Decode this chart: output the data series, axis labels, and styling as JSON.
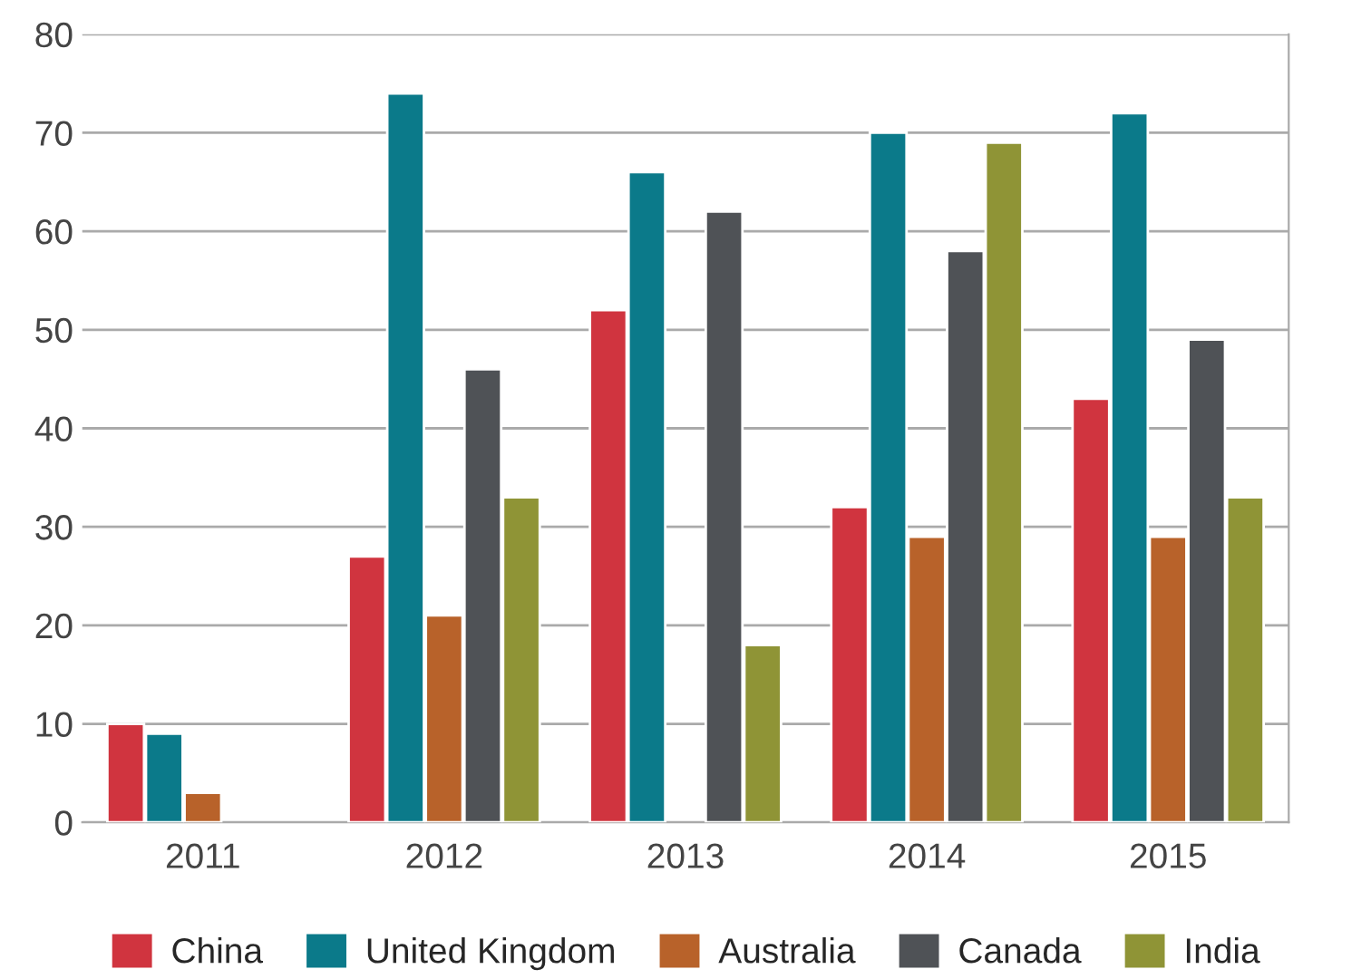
{
  "chart_data": {
    "type": "bar",
    "categories": [
      "2011",
      "2012",
      "2013",
      "2014",
      "2015"
    ],
    "series": [
      {
        "name": "China",
        "color": "#d0343f",
        "values": [
          10,
          27,
          52,
          32,
          43
        ]
      },
      {
        "name": "United Kingdom",
        "color": "#0b7a8a",
        "values": [
          9,
          74,
          66,
          70,
          72
        ]
      },
      {
        "name": "Australia",
        "color": "#b8622a",
        "values": [
          3,
          21,
          null,
          29,
          29
        ]
      },
      {
        "name": "Canada",
        "color": "#4f5256",
        "values": [
          null,
          46,
          62,
          58,
          49
        ]
      },
      {
        "name": "India",
        "color": "#8f9436",
        "values": [
          null,
          33,
          18,
          69,
          33
        ]
      }
    ],
    "ylim": [
      0,
      80
    ],
    "yticks": [
      0,
      10,
      20,
      30,
      40,
      50,
      60,
      70,
      80
    ],
    "grid": "y",
    "legend": "bottom"
  }
}
